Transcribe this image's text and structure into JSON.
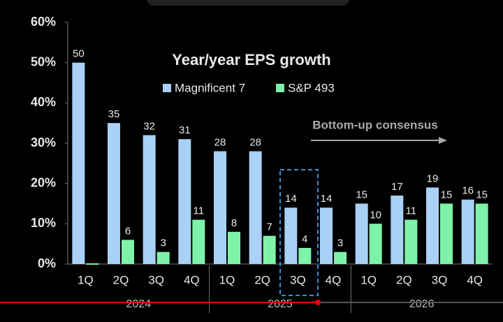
{
  "chart_data": {
    "type": "bar",
    "title": "Year/year EPS growth",
    "annotation": "Bottom-up consensus",
    "categories": [
      "1Q",
      "2Q",
      "3Q",
      "4Q",
      "1Q",
      "2Q",
      "3Q",
      "4Q",
      "1Q",
      "2Q",
      "3Q",
      "4Q"
    ],
    "category_groups": [
      "2024",
      "2025",
      "2026"
    ],
    "series": [
      {
        "name": "Magnificent 7",
        "color": "#a9d0f5",
        "values": [
          50,
          35,
          32,
          31,
          28,
          28,
          14,
          14,
          15,
          17,
          19,
          16
        ]
      },
      {
        "name": "S&P 493",
        "color": "#7ef2a8",
        "values": [
          0,
          6,
          3,
          11,
          8,
          7,
          4,
          3,
          10,
          11,
          15,
          15
        ],
        "value_labels": [
          null,
          "6",
          "3",
          "11",
          "8",
          "7",
          "4",
          "3",
          "10",
          "11",
          "15",
          "15"
        ]
      }
    ],
    "ylim": [
      0,
      60
    ],
    "yticks": [
      {
        "value": 0,
        "label": "0%"
      },
      {
        "value": 10,
        "label": "10%"
      },
      {
        "value": 20,
        "label": "20%"
      },
      {
        "value": 30,
        "label": "30%"
      },
      {
        "value": 40,
        "label": "40%"
      },
      {
        "value": 50,
        "label": "50%"
      },
      {
        "value": 60,
        "label": "60%"
      }
    ],
    "grid": false
  }
}
